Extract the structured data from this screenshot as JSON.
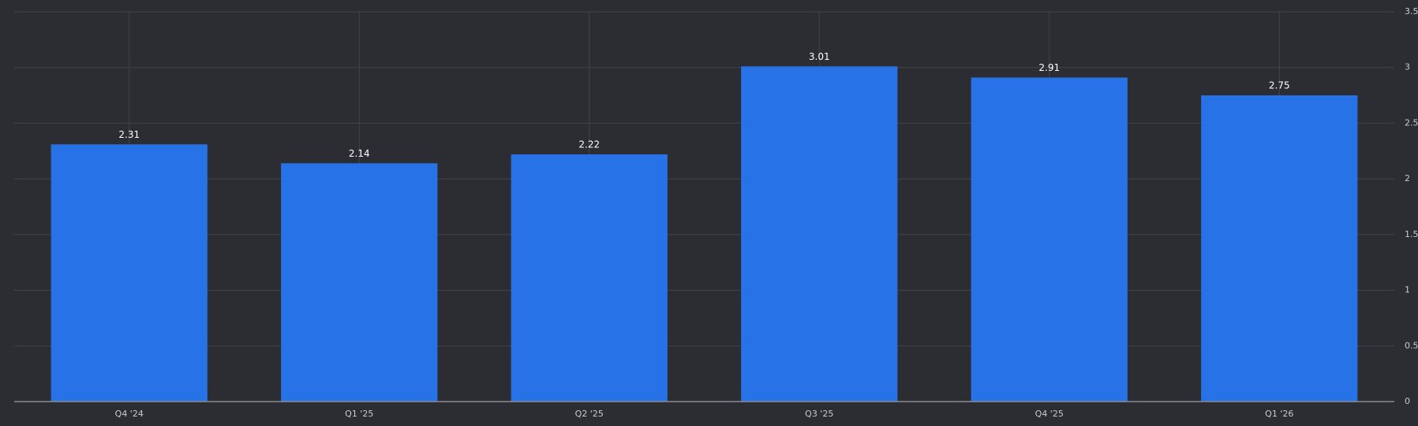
{
  "chart_data": {
    "type": "bar",
    "categories": [
      "Q4 '24",
      "Q1 '25",
      "Q2 '25",
      "Q3 '25",
      "Q4 '25",
      "Q1 '26"
    ],
    "values": [
      2.31,
      2.14,
      2.22,
      3.01,
      2.91,
      2.75
    ],
    "color": "#2872e8",
    "ylim": [
      0,
      3.5
    ],
    "yticks": [
      0,
      0.5,
      1,
      1.5,
      2,
      2.5,
      3,
      3.5
    ],
    "grid": true,
    "y_axis_side": "right",
    "data_labels": true
  }
}
